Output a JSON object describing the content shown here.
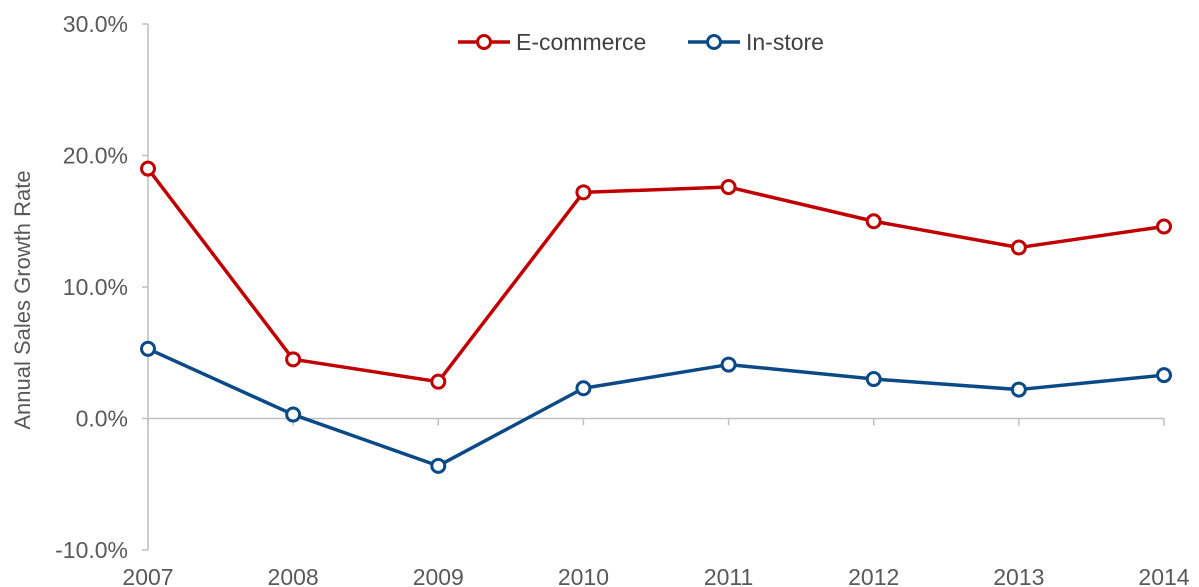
{
  "chart_data": {
    "type": "line",
    "title": "",
    "xlabel": "",
    "ylabel": "Annual Sales Growth Rate",
    "categories": [
      "2007",
      "2008",
      "2009",
      "2010",
      "2011",
      "2012",
      "2013",
      "2014"
    ],
    "ylim": [
      -10,
      30
    ],
    "yticks": [
      -10,
      0,
      10,
      20,
      30
    ],
    "ytick_labels": [
      "-10.0%",
      "0.0%",
      "10.0%",
      "20.0%",
      "30.0%"
    ],
    "grid": false,
    "legend_position": "top-center",
    "series": [
      {
        "name": "E-commerce",
        "color": "#C00000",
        "values": [
          19.0,
          4.5,
          2.8,
          17.2,
          17.6,
          15.0,
          13.0,
          14.6
        ]
      },
      {
        "name": "In-store",
        "color": "#0B4A86",
        "values": [
          5.3,
          0.3,
          -3.6,
          2.3,
          4.1,
          3.0,
          2.2,
          3.3
        ]
      }
    ]
  }
}
